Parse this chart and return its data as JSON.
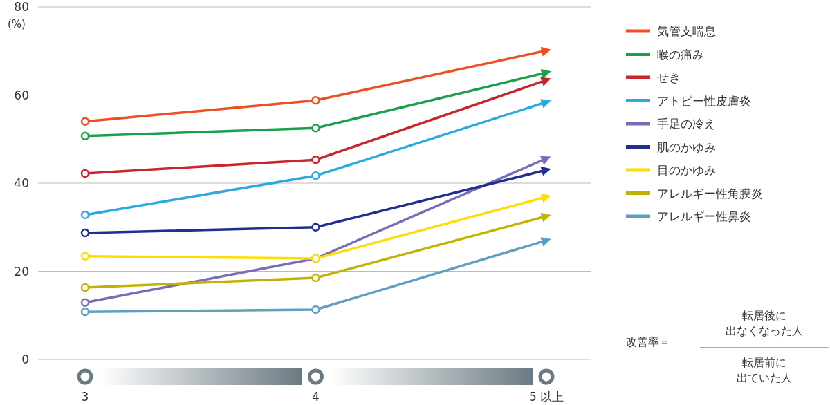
{
  "chart_data": {
    "type": "line",
    "ylabel": "(%)",
    "categories": [
      "3",
      "4",
      "5 以上"
    ],
    "ylim": [
      0,
      80
    ],
    "yticks": [
      0,
      20,
      40,
      60,
      80
    ],
    "grid": "y",
    "legend": "right",
    "marker": "circle",
    "line_style": "solid",
    "series": [
      {
        "name": "気管支喘息",
        "color": "#f04e23",
        "values": [
          54.0,
          58.8,
          70.1
        ]
      },
      {
        "name": "喉の痛み",
        "color": "#1aa04a",
        "values": [
          50.7,
          52.5,
          65.1
        ]
      },
      {
        "name": "せき",
        "color": "#c8252c",
        "values": [
          42.2,
          45.3,
          63.4
        ]
      },
      {
        "name": "アトピー性皮膚炎",
        "color": "#29aae1",
        "values": [
          32.8,
          41.7,
          58.4
        ]
      },
      {
        "name": "手足の冷え",
        "color": "#7b6bb8",
        "values": [
          12.9,
          22.9,
          45.6
        ]
      },
      {
        "name": "肌のかゆみ",
        "color": "#1f2f8f",
        "values": [
          28.7,
          30.0,
          43.0
        ]
      },
      {
        "name": "目のかゆみ",
        "color": "#ffdd00",
        "values": [
          23.4,
          22.9,
          36.9
        ]
      },
      {
        "name": "アレルギー性角膜炎",
        "color": "#c3b300",
        "values": [
          16.3,
          18.5,
          32.5
        ]
      },
      {
        "name": "アレルギー性鼻炎",
        "color": "#5f9fbf",
        "values": [
          10.8,
          11.3,
          27.0
        ]
      }
    ],
    "annotations": [
      "改善率＝",
      "転居後に",
      "出なくなった人",
      "転居前に",
      "出ていた人"
    ]
  }
}
